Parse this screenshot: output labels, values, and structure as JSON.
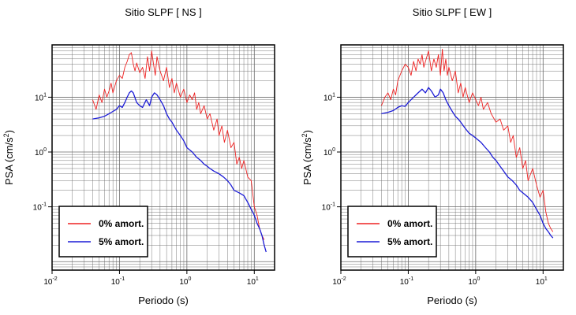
{
  "chart_data": [
    {
      "type": "line",
      "title": "Sitio SLPF [ NS ]",
      "xlabel": "Periodo (s)",
      "ylabel": "PSA (cm/s²)",
      "xscale": "log",
      "yscale": "log",
      "xlim": [
        0.01,
        20
      ],
      "ylim": [
        0.007,
        90
      ],
      "grid": true,
      "x_ticks": [
        {
          "base": "10",
          "exp": "-2"
        },
        {
          "base": "10",
          "exp": "-1"
        },
        {
          "base": "10",
          "exp": "0"
        },
        {
          "base": "10",
          "exp": "1"
        }
      ],
      "y_ticks": [
        {
          "base": "10",
          "exp": "-1"
        },
        {
          "base": "10",
          "exp": "0"
        },
        {
          "base": "10",
          "exp": "1"
        }
      ],
      "legend": {
        "position": "bottom-left"
      },
      "series": [
        {
          "name": "0% amort.",
          "color": "#ee2222",
          "x": [
            0.04,
            0.045,
            0.05,
            0.055,
            0.06,
            0.065,
            0.07,
            0.075,
            0.08,
            0.09,
            0.1,
            0.11,
            0.12,
            0.13,
            0.14,
            0.15,
            0.16,
            0.17,
            0.18,
            0.2,
            0.22,
            0.24,
            0.26,
            0.28,
            0.3,
            0.32,
            0.34,
            0.36,
            0.38,
            0.4,
            0.45,
            0.5,
            0.55,
            0.6,
            0.65,
            0.7,
            0.8,
            0.9,
            1.0,
            1.1,
            1.2,
            1.3,
            1.4,
            1.5,
            1.6,
            1.8,
            2.0,
            2.2,
            2.5,
            2.8,
            3.0,
            3.3,
            3.6,
            4.0,
            4.5,
            5.0,
            5.5,
            6.0,
            6.5,
            7.0,
            8.0,
            9.0,
            10.0,
            11.0,
            12.0,
            13.0,
            14.0
          ],
          "y": [
            9,
            6,
            11,
            8,
            14,
            10,
            13,
            18,
            12,
            20,
            25,
            22,
            35,
            45,
            60,
            65,
            40,
            30,
            42,
            28,
            35,
            22,
            55,
            30,
            70,
            40,
            25,
            55,
            40,
            30,
            20,
            35,
            15,
            22,
            12,
            18,
            10,
            14,
            8,
            11,
            9,
            12,
            6,
            8,
            5,
            7,
            4,
            5,
            2.5,
            4,
            2,
            3,
            1.5,
            2.5,
            1.2,
            1.5,
            0.6,
            0.8,
            0.5,
            0.7,
            0.35,
            0.3,
            0.1,
            0.07,
            0.04,
            0.03,
            0.025
          ]
        },
        {
          "name": "5% amort.",
          "color": "#1c1cd6",
          "x": [
            0.04,
            0.05,
            0.06,
            0.07,
            0.08,
            0.09,
            0.1,
            0.11,
            0.12,
            0.13,
            0.14,
            0.15,
            0.16,
            0.18,
            0.2,
            0.22,
            0.25,
            0.28,
            0.3,
            0.33,
            0.36,
            0.4,
            0.45,
            0.5,
            0.55,
            0.6,
            0.7,
            0.8,
            0.9,
            1.0,
            1.2,
            1.4,
            1.6,
            1.8,
            2.0,
            2.2,
            2.5,
            3.0,
            3.5,
            4.0,
            4.5,
            5.0,
            6.0,
            7.0,
            8.0,
            9.0,
            10.0,
            11.0,
            12.0,
            13.0,
            14.0,
            15.0
          ],
          "y": [
            4,
            4.2,
            4.5,
            5,
            5.5,
            6,
            7,
            6.5,
            8,
            10,
            12,
            13,
            12,
            8,
            7,
            6.5,
            9,
            7,
            10,
            12,
            11,
            9,
            7,
            5,
            4,
            3.5,
            2.5,
            2,
            1.6,
            1.2,
            1,
            0.8,
            0.7,
            0.6,
            0.55,
            0.5,
            0.45,
            0.4,
            0.35,
            0.3,
            0.25,
            0.2,
            0.18,
            0.16,
            0.12,
            0.09,
            0.07,
            0.05,
            0.04,
            0.03,
            0.02,
            0.015
          ]
        }
      ]
    },
    {
      "type": "line",
      "title": "Sitio SLPF [ EW ]",
      "xlabel": "Periodo (s)",
      "ylabel": "PSA (cm/s²)",
      "xscale": "log",
      "yscale": "log",
      "xlim": [
        0.01,
        20
      ],
      "ylim": [
        0.007,
        90
      ],
      "grid": true,
      "x_ticks": [
        {
          "base": "10",
          "exp": "-2"
        },
        {
          "base": "10",
          "exp": "-1"
        },
        {
          "base": "10",
          "exp": "0"
        },
        {
          "base": "10",
          "exp": "1"
        }
      ],
      "y_ticks": [
        {
          "base": "10",
          "exp": "-1"
        },
        {
          "base": "10",
          "exp": "0"
        },
        {
          "base": "10",
          "exp": "1"
        }
      ],
      "legend": {
        "position": "bottom-left"
      },
      "series": [
        {
          "name": "0% amort.",
          "color": "#ee2222",
          "x": [
            0.04,
            0.045,
            0.05,
            0.055,
            0.06,
            0.065,
            0.07,
            0.08,
            0.09,
            0.1,
            0.11,
            0.12,
            0.13,
            0.14,
            0.15,
            0.16,
            0.17,
            0.18,
            0.2,
            0.22,
            0.24,
            0.26,
            0.28,
            0.3,
            0.32,
            0.34,
            0.36,
            0.38,
            0.4,
            0.45,
            0.5,
            0.55,
            0.6,
            0.65,
            0.7,
            0.8,
            0.9,
            1.0,
            1.1,
            1.2,
            1.3,
            1.5,
            1.7,
            2.0,
            2.3,
            2.6,
            3.0,
            3.3,
            3.6,
            4.0,
            4.5,
            5.0,
            5.5,
            6.0,
            7.0,
            8.0,
            9.0,
            10.0,
            11.0,
            12.0,
            13.0,
            14.0
          ],
          "y": [
            7,
            10,
            12,
            9,
            14,
            11,
            20,
            30,
            40,
            35,
            25,
            45,
            30,
            50,
            40,
            60,
            35,
            45,
            70,
            30,
            50,
            35,
            60,
            25,
            75,
            30,
            50,
            25,
            35,
            20,
            30,
            12,
            18,
            10,
            15,
            8,
            12,
            9,
            7,
            10,
            6,
            8,
            5,
            3.5,
            4,
            2.5,
            3,
            1.5,
            2,
            0.8,
            1.2,
            0.5,
            0.7,
            0.3,
            0.5,
            0.25,
            0.15,
            0.2,
            0.08,
            0.05,
            0.04,
            0.035
          ]
        },
        {
          "name": "5% amort.",
          "color": "#1c1cd6",
          "x": [
            0.04,
            0.05,
            0.06,
            0.07,
            0.08,
            0.09,
            0.1,
            0.11,
            0.12,
            0.13,
            0.14,
            0.15,
            0.16,
            0.18,
            0.2,
            0.22,
            0.25,
            0.28,
            0.3,
            0.33,
            0.36,
            0.4,
            0.45,
            0.5,
            0.55,
            0.6,
            0.7,
            0.8,
            0.9,
            1.0,
            1.2,
            1.4,
            1.6,
            1.8,
            2.0,
            2.3,
            2.6,
            3.0,
            3.5,
            4.0,
            4.5,
            5.0,
            6.0,
            7.0,
            8.0,
            9.0,
            10.0,
            11.0,
            12.0,
            13.0,
            14.0
          ],
          "y": [
            5,
            5.3,
            5.7,
            6.5,
            7,
            6.8,
            8,
            9,
            10,
            11,
            12,
            13,
            14,
            12,
            15,
            13,
            10,
            11,
            14,
            12,
            9,
            7,
            5.5,
            4.5,
            4,
            3.5,
            2.7,
            2.2,
            2,
            1.8,
            1.5,
            1.2,
            1,
            0.8,
            0.7,
            0.55,
            0.45,
            0.35,
            0.3,
            0.25,
            0.2,
            0.18,
            0.15,
            0.12,
            0.09,
            0.07,
            0.05,
            0.04,
            0.035,
            0.03,
            0.027
          ]
        }
      ]
    }
  ]
}
